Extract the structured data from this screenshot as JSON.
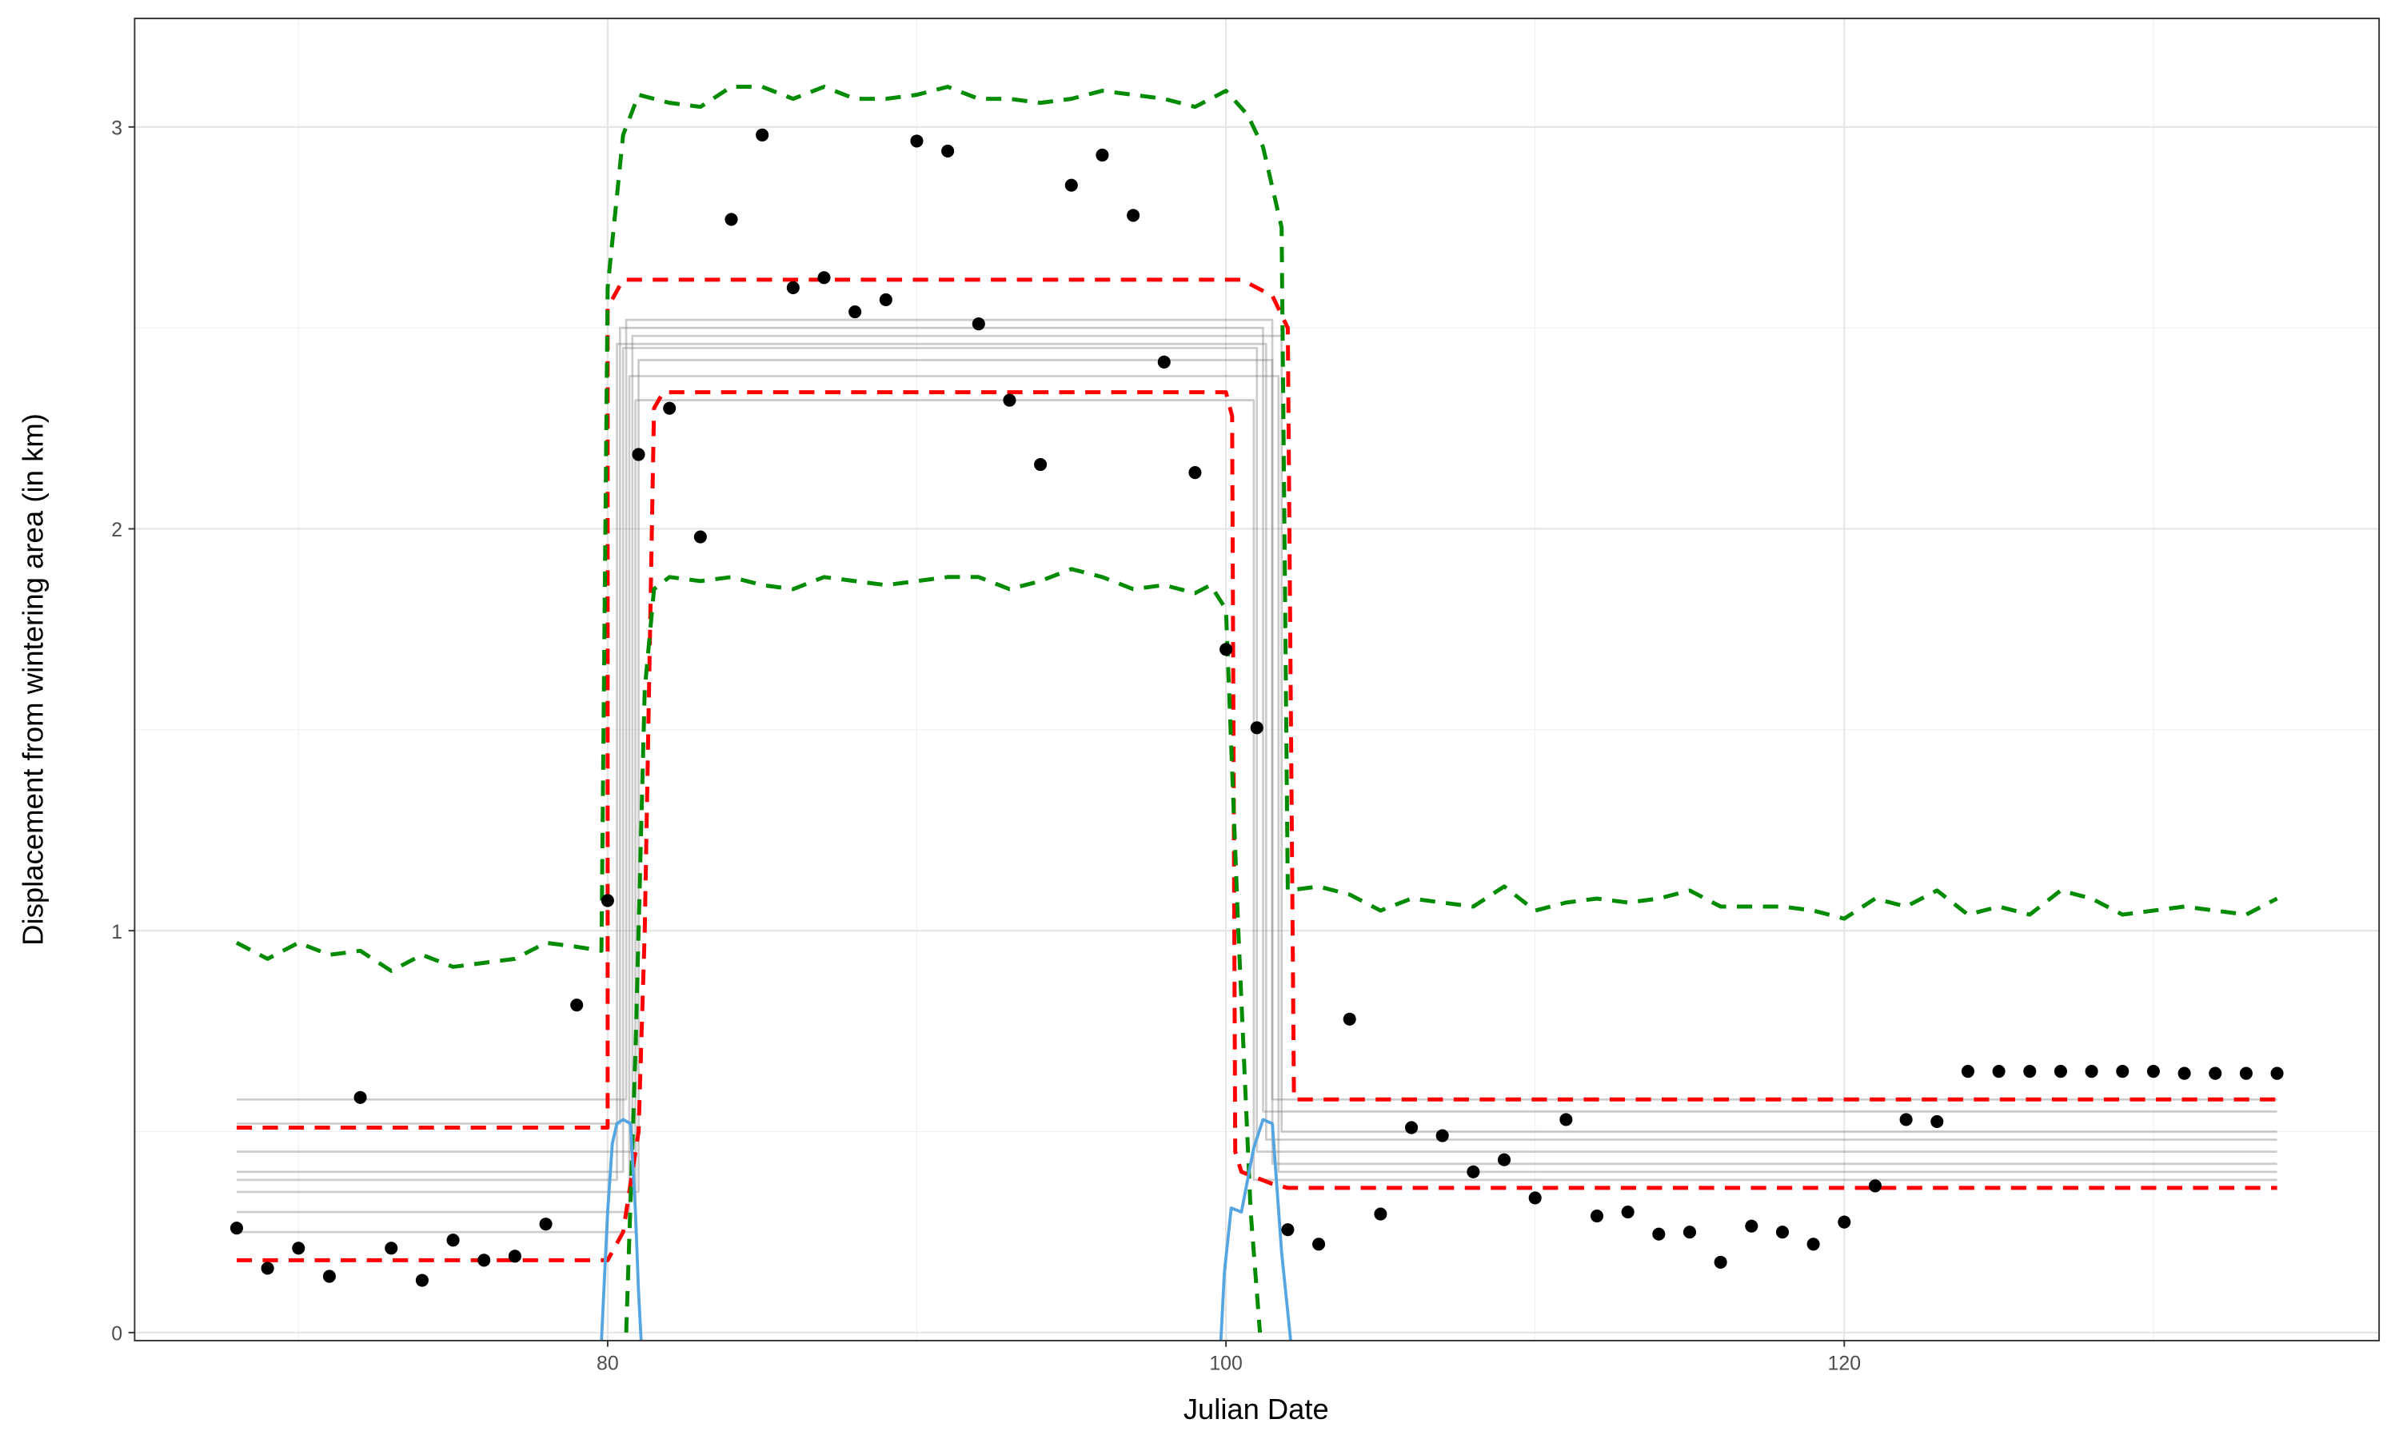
{
  "chart_data": {
    "type": "scatter",
    "x_label": "Julian Date",
    "y_label": "Displacement from wintering area (in km)",
    "xlim": [
      64.7,
      137.3
    ],
    "ylim": [
      -0.02,
      3.27
    ],
    "xticks": [
      80,
      100,
      120
    ],
    "yticks": [
      0,
      1,
      2,
      3
    ],
    "xminorticks": [
      70,
      90,
      110,
      130
    ],
    "yminorticks": [
      0.5,
      1.5,
      2.5
    ],
    "grid": true,
    "series": [
      {
        "style": "lines",
        "color": "#808080",
        "opacity": 0.4,
        "x": [
          68,
          80.6,
          80.6,
          101.5,
          101.5,
          134
        ],
        "values": [
          0.58,
          0.58,
          2.52,
          2.52,
          0.58,
          0.58
        ]
      },
      {
        "style": "lines",
        "color": "#808080",
        "opacity": 0.4,
        "x": [
          68,
          80.4,
          80.4,
          101.2,
          101.2,
          134
        ],
        "values": [
          0.52,
          0.52,
          2.5,
          2.5,
          0.55,
          0.55
        ]
      },
      {
        "style": "lines",
        "color": "#808080",
        "opacity": 0.4,
        "x": [
          68,
          80.8,
          80.8,
          101.8,
          101.8,
          134
        ],
        "values": [
          0.45,
          0.45,
          2.48,
          2.48,
          0.5,
          0.5
        ]
      },
      {
        "style": "lines",
        "color": "#808080",
        "opacity": 0.4,
        "x": [
          68,
          80.5,
          80.5,
          101,
          101,
          134
        ],
        "values": [
          0.4,
          0.4,
          2.45,
          2.45,
          0.45,
          0.45
        ]
      },
      {
        "style": "lines",
        "color": "#808080",
        "opacity": 0.4,
        "x": [
          68,
          81,
          81,
          101.5,
          101.5,
          134
        ],
        "values": [
          0.35,
          0.35,
          2.42,
          2.42,
          0.42,
          0.42
        ]
      },
      {
        "style": "lines",
        "color": "#808080",
        "opacity": 0.4,
        "x": [
          68,
          80.7,
          80.7,
          101.7,
          101.7,
          134
        ],
        "values": [
          0.3,
          0.3,
          2.38,
          2.38,
          0.4,
          0.4
        ]
      },
      {
        "style": "lines",
        "color": "#808080",
        "opacity": 0.4,
        "x": [
          68,
          80.9,
          80.9,
          100.9,
          100.9,
          134
        ],
        "values": [
          0.25,
          0.25,
          2.32,
          2.32,
          0.38,
          0.38
        ]
      },
      {
        "style": "lines",
        "color": "#808080",
        "opacity": 0.4,
        "x": [
          68,
          80.3,
          80.3,
          101.3,
          101.3,
          134
        ],
        "values": [
          0.38,
          0.38,
          2.46,
          2.46,
          0.48,
          0.48
        ]
      },
      {
        "style": "dashed",
        "color": "#ff0000",
        "opacity": 1,
        "x": [
          68,
          80,
          80,
          80.5,
          100.5,
          101.5,
          102,
          102.2,
          134
        ],
        "values": [
          0.51,
          0.51,
          2.55,
          2.62,
          2.62,
          2.58,
          2.5,
          0.58,
          0.58
        ]
      },
      {
        "style": "dashed",
        "color": "#ff0000",
        "opacity": 1,
        "x": [
          68,
          80,
          80.5,
          81,
          81.2,
          81.5,
          81.8,
          100,
          100.2,
          100.3,
          100.5,
          101.5,
          102,
          134
        ],
        "values": [
          0.18,
          0.18,
          0.25,
          0.5,
          1.0,
          2.3,
          2.34,
          2.34,
          2.28,
          0.45,
          0.4,
          0.37,
          0.36,
          0.36
        ]
      },
      {
        "style": "dashed",
        "color": "#008b00",
        "opacity": 1,
        "x": [
          68,
          69,
          70,
          71,
          72,
          73,
          74,
          75,
          76,
          77,
          78,
          79,
          79.8,
          80,
          80.5,
          81,
          82,
          83,
          84,
          85,
          86,
          87,
          88,
          89,
          90,
          91,
          92,
          93,
          94,
          95,
          96,
          97,
          98,
          99,
          100,
          100.7,
          101.2,
          101.8,
          102,
          103,
          104,
          105,
          106,
          107,
          108,
          109,
          110,
          111,
          112,
          113,
          114,
          115,
          116,
          117,
          118,
          119,
          120,
          121,
          122,
          123,
          124,
          125,
          126,
          127,
          128,
          129,
          130,
          131,
          132,
          133,
          134
        ],
        "values": [
          0.97,
          0.93,
          0.97,
          0.94,
          0.95,
          0.9,
          0.94,
          0.91,
          0.92,
          0.93,
          0.97,
          0.96,
          0.95,
          2.6,
          2.98,
          3.08,
          3.06,
          3.05,
          3.1,
          3.1,
          3.07,
          3.1,
          3.07,
          3.07,
          3.08,
          3.1,
          3.07,
          3.07,
          3.06,
          3.07,
          3.09,
          3.08,
          3.07,
          3.05,
          3.09,
          3.03,
          2.95,
          2.75,
          1.1,
          1.11,
          1.09,
          1.05,
          1.08,
          1.07,
          1.06,
          1.11,
          1.05,
          1.07,
          1.08,
          1.07,
          1.08,
          1.1,
          1.06,
          1.06,
          1.06,
          1.05,
          1.03,
          1.08,
          1.06,
          1.1,
          1.04,
          1.06,
          1.04,
          1.1,
          1.08,
          1.04,
          1.05,
          1.06,
          1.05,
          1.04,
          1.08
        ]
      },
      {
        "style": "dashed",
        "color": "#008b00",
        "opacity": 1,
        "x": [
          80.6,
          80.9,
          81.2,
          81.5,
          82,
          83,
          84,
          85,
          86,
          87,
          88,
          89,
          90,
          91,
          92,
          93,
          94,
          95,
          96,
          97,
          98,
          99,
          99.5,
          100,
          100.4,
          100.8,
          101.1
        ],
        "values": [
          0,
          0.7,
          1.6,
          1.85,
          1.88,
          1.87,
          1.88,
          1.86,
          1.85,
          1.88,
          1.87,
          1.86,
          1.87,
          1.88,
          1.88,
          1.85,
          1.87,
          1.9,
          1.88,
          1.85,
          1.86,
          1.84,
          1.86,
          1.8,
          1.0,
          0.3,
          0
        ]
      },
      {
        "style": "solid",
        "color": "#56a5e3",
        "opacity": 1,
        "x": [
          79.75,
          80.0,
          80.15,
          80.3,
          80.5,
          80.74,
          80.9,
          81.0,
          81.14
        ],
        "values": [
          -0.1,
          0.3,
          0.47,
          0.52,
          0.53,
          0.52,
          0.3,
          0.1,
          -0.1
        ]
      },
      {
        "style": "solid",
        "color": "#56a5e3",
        "opacity": 1,
        "x": [
          99.78,
          99.95,
          100.17,
          100.5,
          100.9,
          101.2,
          101.5,
          101.8,
          102.0,
          102.2
        ],
        "values": [
          -0.1,
          0.15,
          0.31,
          0.3,
          0.46,
          0.53,
          0.52,
          0.2,
          0.05,
          -0.1
        ]
      },
      {
        "style": "points",
        "color": "#000000",
        "opacity": 1,
        "x": [
          68,
          69,
          70,
          71,
          72,
          73,
          74,
          75,
          76,
          77,
          78,
          79,
          80,
          81,
          82,
          83,
          84,
          85,
          86,
          87,
          88,
          89,
          90,
          91,
          92,
          93,
          94,
          95,
          96,
          97,
          98,
          99,
          100,
          101,
          102,
          103,
          104,
          105,
          106,
          107,
          108,
          109,
          110,
          111,
          112,
          113,
          114,
          115,
          116,
          117,
          118,
          119,
          120,
          121,
          122,
          123,
          124,
          125,
          126,
          127,
          128,
          129,
          130,
          131,
          132,
          133,
          134
        ],
        "values": [
          0.26,
          0.16,
          0.21,
          0.14,
          0.585,
          0.21,
          0.13,
          0.23,
          0.18,
          0.19,
          0.27,
          0.815,
          1.075,
          2.185,
          2.3,
          1.98,
          2.77,
          2.98,
          2.6,
          2.625,
          2.54,
          2.57,
          2.965,
          2.94,
          2.51,
          2.32,
          2.16,
          2.855,
          2.93,
          2.78,
          2.415,
          2.14,
          1.7,
          1.505,
          0.256,
          0.22,
          0.78,
          0.295,
          0.51,
          0.49,
          0.4,
          0.43,
          0.335,
          0.53,
          0.29,
          0.3,
          0.245,
          0.25,
          0.175,
          0.265,
          0.25,
          0.22,
          0.275,
          0.365,
          0.53,
          0.525,
          0.65,
          0.65,
          0.65,
          0.65,
          0.65,
          0.65,
          0.65,
          0.645,
          0.645,
          0.645,
          0.645
        ]
      }
    ]
  }
}
